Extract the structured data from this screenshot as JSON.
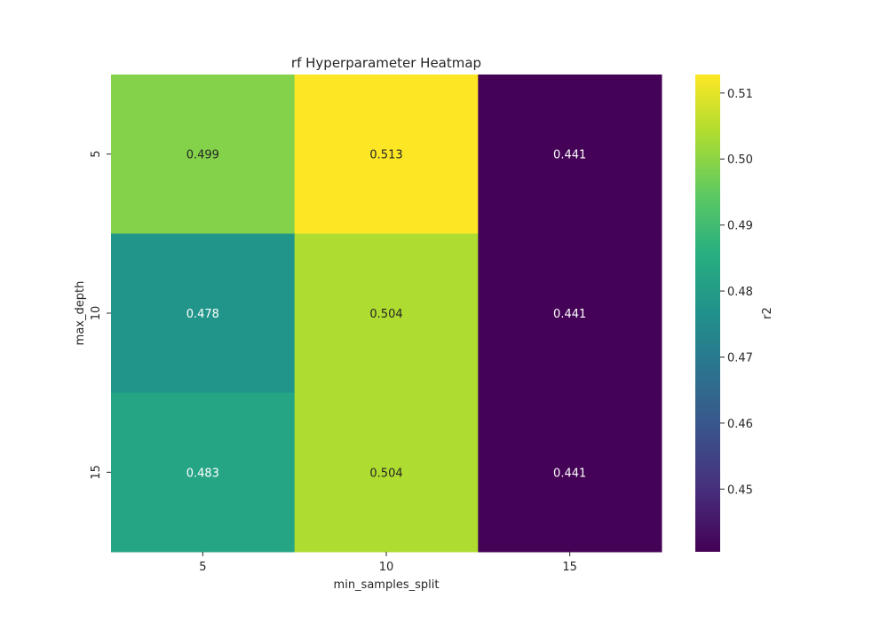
{
  "chart_data": {
    "type": "heatmap",
    "title": "rf Hyperparameter Heatmap",
    "xlabel": "min_samples_split",
    "ylabel": "max_depth",
    "x_categories": [
      "5",
      "10",
      "15"
    ],
    "y_categories": [
      "5",
      "10",
      "15"
    ],
    "values": [
      [
        0.499,
        0.513,
        0.441
      ],
      [
        0.478,
        0.504,
        0.441
      ],
      [
        0.483,
        0.504,
        0.441
      ]
    ],
    "value_labels": [
      [
        "0.499",
        "0.513",
        "0.441"
      ],
      [
        "0.478",
        "0.504",
        "0.441"
      ],
      [
        "0.483",
        "0.504",
        "0.441"
      ]
    ],
    "colormap": "viridis",
    "colorbar": {
      "label": "r2",
      "range": [
        0.4405,
        0.5128
      ],
      "ticks": [
        0.45,
        0.46,
        0.47,
        0.48,
        0.49,
        0.5,
        0.51
      ],
      "tick_labels": [
        "0.45",
        "0.46",
        "0.47",
        "0.48",
        "0.49",
        "0.50",
        "0.51"
      ]
    },
    "grid": false
  }
}
